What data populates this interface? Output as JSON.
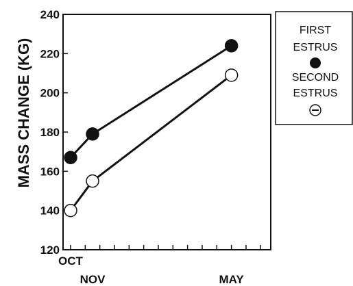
{
  "chart_data": {
    "type": "line",
    "ylabel": "MASS CHANGE (KG)",
    "xlabel": "",
    "ylim": [
      120,
      240
    ],
    "yticks": [
      120,
      140,
      160,
      180,
      200,
      220,
      240
    ],
    "x_domain": [
      0,
      13
    ],
    "x_ticks": [
      {
        "x": 0,
        "label": "OCT"
      },
      {
        "x": 1.5,
        "label": "NOV"
      },
      {
        "x": 11,
        "label": "MAY"
      }
    ],
    "minor_x_ticks": [
      0,
      1,
      2,
      3,
      4,
      5,
      6,
      7,
      8,
      9,
      10,
      11,
      12,
      13
    ],
    "grid": false,
    "legend_position": "top-right outside",
    "series": [
      {
        "name": "FIRST ESTRUS",
        "marker": "filled-circle",
        "color": "#111111",
        "x": [
          0,
          1.5,
          11
        ],
        "values": [
          167,
          179,
          224
        ]
      },
      {
        "name": "SECOND ESTRUS",
        "marker": "open-circle",
        "color": "#111111",
        "x": [
          0,
          1.5,
          11
        ],
        "values": [
          140,
          155,
          209
        ]
      }
    ],
    "legend": {
      "entries": [
        {
          "lines": [
            "FIRST",
            "ESTRUS"
          ],
          "symbol": "filled-circle"
        },
        {
          "lines": [
            "SECOND",
            "ESTRUS"
          ],
          "symbol": "minus-circle"
        }
      ]
    }
  }
}
